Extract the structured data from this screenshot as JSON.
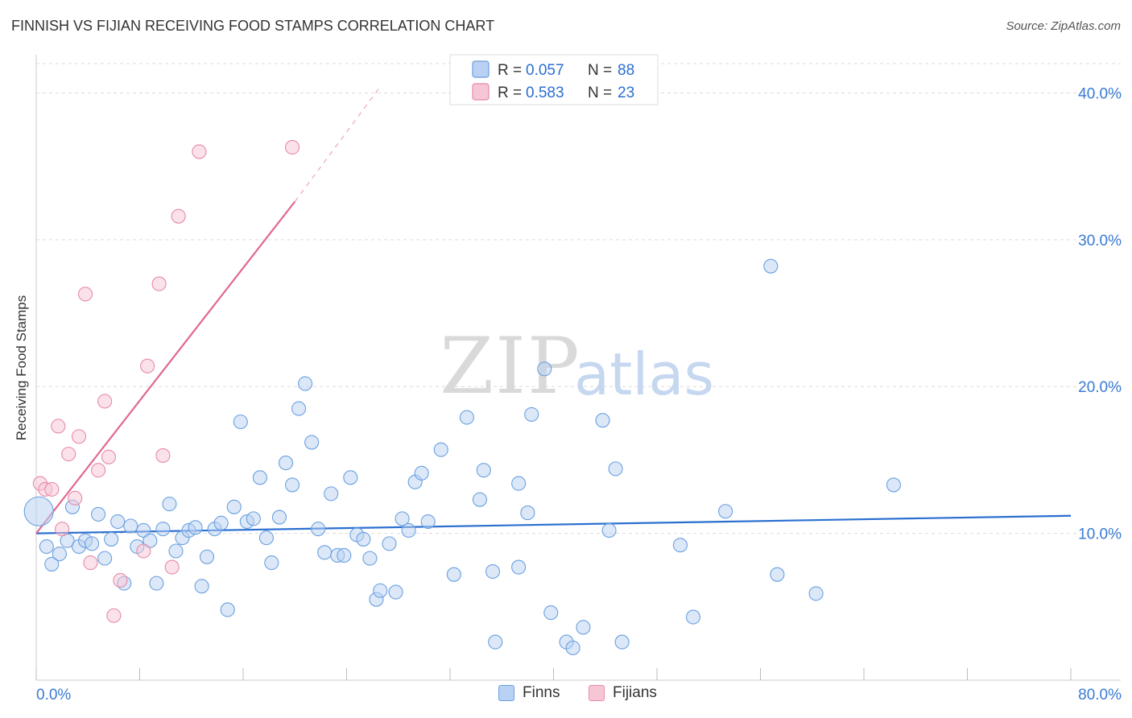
{
  "title": "FINNISH VS FIJIAN RECEIVING FOOD STAMPS CORRELATION CHART",
  "source": "Source: ZipAtlas.com",
  "watermark": {
    "zip": "ZIP",
    "atlas": "atlas"
  },
  "chart_data": {
    "type": "scatter",
    "ylabel": "Receiving Food Stamps",
    "xlim": [
      0,
      80
    ],
    "ylim": [
      0,
      42
    ],
    "x_tick_labels": [
      "0.0%",
      "80.0%"
    ],
    "y_ticks": [
      10,
      20,
      30,
      40
    ],
    "y_tick_labels": [
      "10.0%",
      "20.0%",
      "30.0%",
      "40.0%"
    ],
    "grid": true,
    "legend": {
      "position": "top-center",
      "entries": [
        {
          "r_label": "R = ",
          "r_value": "0.057",
          "n_label": "N = ",
          "n_value": "88"
        },
        {
          "r_label": "R = ",
          "r_value": "0.583",
          "n_label": "N = ",
          "n_value": "23"
        }
      ]
    },
    "series": [
      {
        "name": "Finns",
        "color": "#6aa0e0",
        "fill": "#b9d1f2",
        "line_color": "#2a6fd0",
        "trend": {
          "x0": 0,
          "y0": 10.0,
          "x1": 80,
          "y1": 11.2
        },
        "points": [
          [
            0.2,
            11.5
          ],
          [
            0.8,
            9.1
          ],
          [
            1.2,
            7.9
          ],
          [
            1.8,
            8.6
          ],
          [
            2.4,
            9.5
          ],
          [
            2.8,
            11.8
          ],
          [
            3.3,
            9.1
          ],
          [
            3.8,
            9.5
          ],
          [
            4.3,
            9.3
          ],
          [
            4.8,
            11.3
          ],
          [
            5.3,
            8.3
          ],
          [
            5.8,
            9.6
          ],
          [
            6.3,
            10.8
          ],
          [
            6.8,
            6.6
          ],
          [
            7.3,
            10.5
          ],
          [
            7.8,
            9.1
          ],
          [
            8.3,
            10.2
          ],
          [
            8.8,
            9.5
          ],
          [
            9.3,
            6.6
          ],
          [
            9.8,
            10.3
          ],
          [
            10.3,
            12.0
          ],
          [
            10.8,
            8.8
          ],
          [
            11.3,
            9.7
          ],
          [
            11.8,
            10.2
          ],
          [
            12.3,
            10.4
          ],
          [
            12.8,
            6.4
          ],
          [
            13.2,
            8.4
          ],
          [
            13.8,
            10.3
          ],
          [
            14.3,
            10.7
          ],
          [
            14.8,
            4.8
          ],
          [
            15.3,
            11.8
          ],
          [
            15.8,
            17.6
          ],
          [
            16.3,
            10.8
          ],
          [
            16.8,
            11.0
          ],
          [
            17.3,
            13.8
          ],
          [
            17.8,
            9.7
          ],
          [
            18.2,
            8.0
          ],
          [
            18.8,
            11.1
          ],
          [
            19.3,
            14.8
          ],
          [
            19.8,
            13.3
          ],
          [
            20.3,
            18.5
          ],
          [
            20.8,
            20.2
          ],
          [
            21.3,
            16.2
          ],
          [
            21.8,
            10.3
          ],
          [
            22.3,
            8.7
          ],
          [
            22.8,
            12.7
          ],
          [
            23.3,
            8.5
          ],
          [
            23.8,
            8.5
          ],
          [
            24.3,
            13.8
          ],
          [
            24.8,
            9.9
          ],
          [
            25.3,
            9.6
          ],
          [
            25.8,
            8.3
          ],
          [
            26.3,
            5.5
          ],
          [
            26.6,
            6.1
          ],
          [
            27.3,
            9.3
          ],
          [
            27.8,
            6.0
          ],
          [
            28.3,
            11.0
          ],
          [
            28.8,
            10.2
          ],
          [
            29.3,
            13.5
          ],
          [
            29.8,
            14.1
          ],
          [
            30.3,
            10.8
          ],
          [
            31.3,
            15.7
          ],
          [
            32.3,
            7.2
          ],
          [
            33.3,
            17.9
          ],
          [
            34.3,
            12.3
          ],
          [
            34.6,
            14.3
          ],
          [
            35.3,
            7.4
          ],
          [
            35.5,
            2.6
          ],
          [
            37.3,
            7.7
          ],
          [
            37.3,
            13.4
          ],
          [
            38.0,
            11.4
          ],
          [
            38.3,
            18.1
          ],
          [
            39.3,
            21.2
          ],
          [
            39.8,
            4.6
          ],
          [
            41.0,
            2.6
          ],
          [
            41.5,
            2.2
          ],
          [
            42.3,
            3.6
          ],
          [
            43.8,
            17.7
          ],
          [
            44.3,
            10.2
          ],
          [
            44.8,
            14.4
          ],
          [
            45.3,
            2.6
          ],
          [
            49.8,
            9.2
          ],
          [
            50.8,
            4.3
          ],
          [
            53.3,
            11.5
          ],
          [
            56.8,
            28.2
          ],
          [
            57.3,
            7.2
          ],
          [
            60.3,
            5.9
          ],
          [
            66.3,
            13.3
          ]
        ]
      },
      {
        "name": "Fijians",
        "color": "#e68aa8",
        "fill": "#f7c6d5",
        "line_color": "#e06890",
        "trend": {
          "x0": 0,
          "y0": 10.0,
          "x1": 20.0,
          "y1": 32.6
        },
        "trend_dashed": {
          "x0": 20.0,
          "y0": 32.6,
          "x1": 26.5,
          "y1": 40.3
        },
        "points": [
          [
            0.3,
            13.4
          ],
          [
            0.7,
            13.0
          ],
          [
            1.2,
            13.0
          ],
          [
            1.7,
            17.3
          ],
          [
            2.0,
            10.3
          ],
          [
            2.5,
            15.4
          ],
          [
            3.0,
            12.4
          ],
          [
            3.3,
            16.6
          ],
          [
            3.8,
            26.3
          ],
          [
            4.2,
            8.0
          ],
          [
            4.8,
            14.3
          ],
          [
            5.3,
            19.0
          ],
          [
            5.6,
            15.2
          ],
          [
            6.0,
            4.4
          ],
          [
            6.5,
            6.8
          ],
          [
            8.3,
            8.8
          ],
          [
            8.6,
            21.4
          ],
          [
            9.5,
            27.0
          ],
          [
            9.8,
            15.3
          ],
          [
            10.5,
            7.7
          ],
          [
            11.0,
            31.6
          ],
          [
            12.6,
            36.0
          ],
          [
            19.8,
            36.3
          ]
        ]
      }
    ]
  }
}
